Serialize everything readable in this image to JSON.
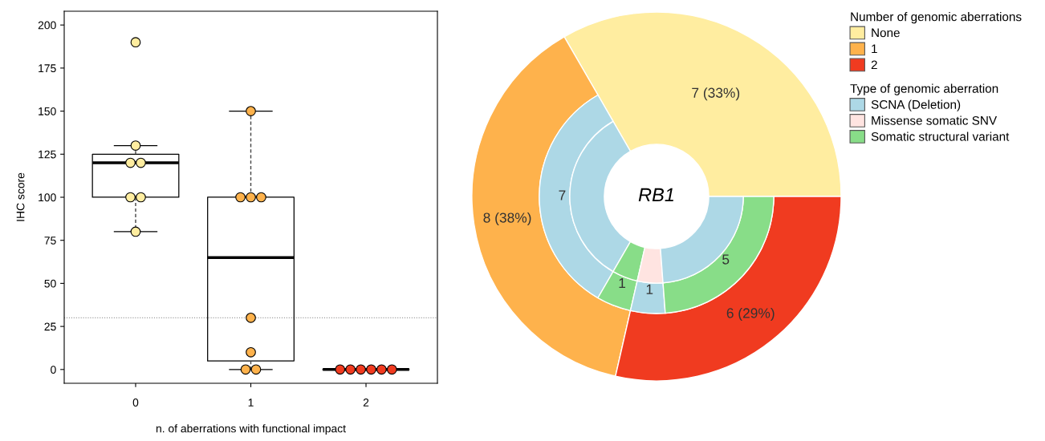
{
  "chart_data": [
    {
      "type": "box",
      "xlabel": "n. of aberrations with functional impact",
      "ylabel": "IHC score",
      "categories": [
        "0",
        "1",
        "2"
      ],
      "boxes": [
        {
          "low": 80,
          "q1": 100,
          "median": 120,
          "q3": 125,
          "high": 130
        },
        {
          "low": 0,
          "q1": 5,
          "median": 65,
          "q3": 100,
          "high": 150
        },
        {
          "low": 0,
          "q1": 0,
          "median": 0,
          "q3": 0,
          "high": 0
        }
      ],
      "ylim": [
        -8,
        208
      ],
      "yticks": [
        0,
        25,
        50,
        75,
        100,
        125,
        150,
        175,
        200
      ],
      "grid": false,
      "marker": "circle",
      "ref_lines": [
        {
          "axis": "y",
          "value": 30,
          "color": "#999999",
          "line_style": "dotted"
        }
      ],
      "series": [
        {
          "type": "scatter",
          "x": [
            "0",
            "0",
            "0",
            "0",
            "0",
            "0",
            "0"
          ],
          "values": [
            190,
            130,
            120,
            120,
            100,
            100,
            80
          ],
          "color": "#ffeda0"
        },
        {
          "type": "scatter",
          "x": [
            "1",
            "1",
            "1",
            "1",
            "1",
            "1",
            "1",
            "1"
          ],
          "values": [
            150,
            100,
            100,
            100,
            30,
            10,
            0,
            0
          ],
          "color": "#feb24c"
        },
        {
          "type": "scatter",
          "x": [
            "2",
            "2",
            "2",
            "2",
            "2",
            "2"
          ],
          "values": [
            0,
            0,
            0,
            0,
            0,
            0
          ],
          "color": "#f03b20"
        }
      ]
    },
    {
      "type": "donut",
      "title": "RB1",
      "legend": "right",
      "legend_title": "Number of genomic aberrations",
      "annotations": [
        "Type of genomic aberration"
      ],
      "categories": [
        "None",
        "1",
        "2",
        "SCNA (Deletion)",
        "Missense somatic SNV",
        "Somatic structural variant"
      ],
      "colors": [
        "#ffeda0",
        "#feb24c",
        "#f03b20",
        "#add8e6",
        "#ffe4e1",
        "#88dd88"
      ],
      "series": [
        {
          "x": [
            "None",
            "1",
            "2"
          ],
          "values": [
            7,
            8,
            6
          ],
          "colors": [
            "#ffeda0",
            "#feb24c",
            "#f03b20"
          ],
          "value_labels": [
            "7 (33%)",
            "8 (38%)",
            "6 (29%)"
          ]
        },
        {
          "x": [
            "SCNA (Deletion)",
            "Somatic structural variant",
            "SCNA (Deletion)",
            "Somatic structural variant"
          ],
          "values": [
            7,
            1,
            1,
            5
          ],
          "colors": [
            "#add8e6",
            "#88dd88",
            "#add8e6",
            "#88dd88"
          ],
          "value_labels": [
            "7",
            "1",
            "1",
            "5"
          ]
        },
        {
          "x": [
            "SCNA (Deletion)",
            "Somatic structural variant",
            "Missense somatic SNV",
            "SCNA (Deletion)"
          ],
          "values": [
            7,
            1,
            1,
            5
          ],
          "colors": [
            "#add8e6",
            "#88dd88",
            "#ffe4e1",
            "#add8e6"
          ]
        }
      ]
    }
  ]
}
